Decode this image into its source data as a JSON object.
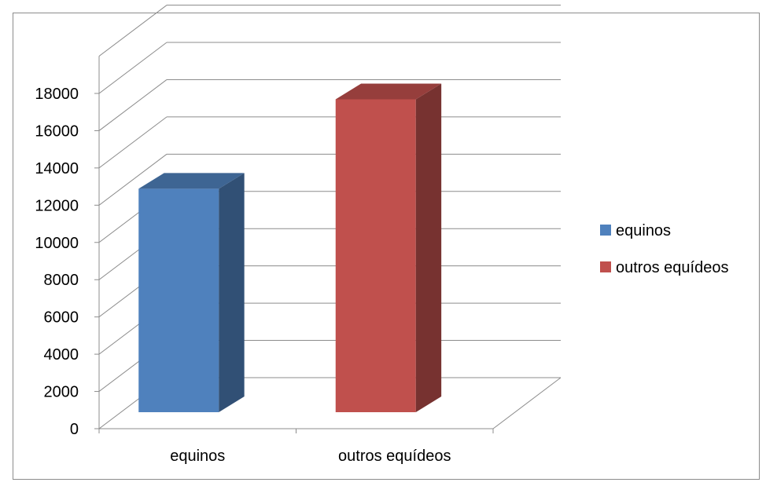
{
  "chart_data": {
    "type": "bar",
    "categories": [
      "equinos",
      "outros equídeos"
    ],
    "series": [
      {
        "name": "equinos",
        "values": [
          12000,
          null
        ],
        "color": "#4F81BD"
      },
      {
        "name": "outros equídeos",
        "values": [
          null,
          16800
        ],
        "color": "#C0504D"
      }
    ],
    "ylim": [
      0,
      18000
    ],
    "yticks": [
      0,
      2000,
      4000,
      6000,
      8000,
      10000,
      12000,
      14000,
      16000,
      18000
    ],
    "grid": true,
    "legend": "right",
    "style": "3d-column"
  }
}
